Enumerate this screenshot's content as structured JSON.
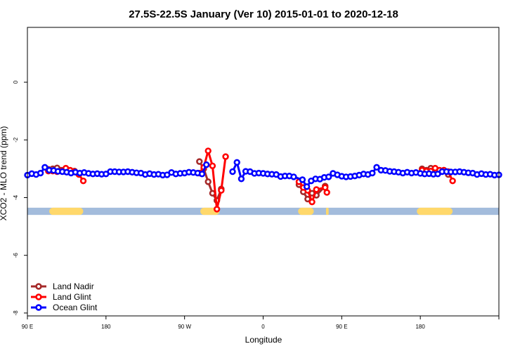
{
  "chart_data": {
    "type": "line",
    "title": "27.5S-22.5S January (Ver 10)   2015-01-01 to 2020-12-18",
    "xlabel": "Longitude",
    "ylabel": "XCO2 - MLO trend (ppm)",
    "xlim": [
      -90,
      180
    ],
    "ylim": [
      -8.1,
      1.9
    ],
    "x_axis": "Longitude in degrees east, plotted on a wrapped axis from 90 E eastward through 180 and 90 W to 0, then 90 E again, ending at 180",
    "x_ticks": [
      {
        "pos": -90,
        "label": "90 E"
      },
      {
        "pos": -45,
        "label": "180"
      },
      {
        "pos": 0,
        "label": "90 W"
      },
      {
        "pos": 45,
        "label": "0"
      },
      {
        "pos": 90,
        "label": "90 E"
      },
      {
        "pos": 135,
        "label": "180"
      }
    ],
    "y_ticks": [
      {
        "pos": 0,
        "label": "0"
      },
      {
        "pos": -2,
        "label": "-2"
      },
      {
        "pos": -4,
        "label": "-4"
      },
      {
        "pos": -6,
        "label": "-6"
      },
      {
        "pos": -8,
        "label": "-8"
      }
    ],
    "land_mask": {
      "y_range": [
        -4.6,
        -4.35
      ],
      "ocean_color": "#a3bcdc",
      "land_color": "#ffd86b",
      "land_segments": [
        [
          -77.5,
          -58
        ],
        [
          9,
          20
        ],
        [
          65,
          74
        ],
        [
          81,
          82.5
        ],
        [
          133,
          153.5
        ]
      ]
    },
    "legend": {
      "position": "bottom-left",
      "entries": [
        {
          "label": "Land Nadir",
          "color": "#a52a2a"
        },
        {
          "label": "Land Glint",
          "color": "#ff0000"
        },
        {
          "label": "Ocean Glint",
          "color": "#0000ff"
        }
      ]
    },
    "series": [
      {
        "name": "Land Nadir",
        "color": "#a52a2a",
        "points": [
          [
            -78,
            -3.02
          ],
          [
            -75.5,
            -3.0
          ],
          [
            -73,
            -2.97
          ],
          [
            -70.5,
            -3.05
          ],
          [
            -68,
            -3.1
          ],
          [
            -65.5,
            -3.1
          ],
          [
            -63,
            -3.08
          ],
          [
            8.5,
            -2.75
          ],
          [
            11,
            -3.0
          ],
          [
            13.5,
            -3.45
          ],
          [
            16,
            -3.85
          ],
          [
            18.5,
            -4.1
          ],
          [
            21,
            -3.7
          ],
          [
            65.5,
            -3.55
          ],
          [
            68,
            -3.8
          ],
          [
            70.5,
            -4.05
          ],
          [
            73,
            -3.85
          ],
          [
            75.5,
            -3.92
          ],
          [
            80.5,
            -3.6
          ],
          [
            136,
            -3.0
          ],
          [
            138.5,
            -3.05
          ],
          [
            141,
            -2.98
          ],
          [
            143.5,
            -3.1
          ],
          [
            146,
            -3.1
          ],
          [
            148.5,
            -3.05
          ],
          [
            151,
            -3.2
          ]
        ]
      },
      {
        "name": "Land Glint",
        "color": "#ff0000",
        "points": [
          [
            -78,
            -3.08
          ],
          [
            -75.5,
            -3.08
          ],
          [
            -73,
            -3.1
          ],
          [
            -70.5,
            -3.08
          ],
          [
            -68,
            -2.98
          ],
          [
            -65.5,
            -3.05
          ],
          [
            -63,
            -3.1
          ],
          [
            -60.5,
            -3.2
          ],
          [
            -58,
            -3.42
          ],
          [
            8.5,
            -3.15
          ],
          [
            11,
            -2.95
          ],
          [
            13.5,
            -2.38
          ],
          [
            16,
            -2.9
          ],
          [
            18.5,
            -4.4
          ],
          [
            21,
            -3.75
          ],
          [
            23.5,
            -2.58
          ],
          [
            65.5,
            -3.45
          ],
          [
            68,
            -3.65
          ],
          [
            70.5,
            -3.75
          ],
          [
            73,
            -4.15
          ],
          [
            75.5,
            -3.72
          ],
          [
            80.5,
            -3.65
          ],
          [
            81.5,
            -3.82
          ],
          [
            136,
            -3.05
          ],
          [
            138.5,
            -3.08
          ],
          [
            141,
            -3.08
          ],
          [
            143.5,
            -2.98
          ],
          [
            146,
            -3.05
          ],
          [
            148.5,
            -3.05
          ],
          [
            151,
            -3.1
          ],
          [
            153.5,
            -3.42
          ]
        ]
      },
      {
        "name": "Ocean Glint",
        "color": "#0000ff",
        "points": [
          [
            -90,
            -3.22
          ],
          [
            -87.5,
            -3.17
          ],
          [
            -85,
            -3.2
          ],
          [
            -82.5,
            -3.15
          ],
          [
            -80,
            -2.95
          ],
          [
            -77.5,
            -3.05
          ],
          [
            -75,
            -3.06
          ],
          [
            -72.5,
            -3.09
          ],
          [
            -70,
            -3.1
          ],
          [
            -67.5,
            -3.12
          ],
          [
            -65,
            -3.15
          ],
          [
            -62.5,
            -3.12
          ],
          [
            -60,
            -3.15
          ],
          [
            -57.5,
            -3.13
          ],
          [
            -55,
            -3.16
          ],
          [
            -52.5,
            -3.18
          ],
          [
            -50,
            -3.17
          ],
          [
            -47.5,
            -3.19
          ],
          [
            -45,
            -3.18
          ],
          [
            -42.5,
            -3.1
          ],
          [
            -40,
            -3.1
          ],
          [
            -37.5,
            -3.11
          ],
          [
            -35,
            -3.11
          ],
          [
            -32.5,
            -3.1
          ],
          [
            -30,
            -3.12
          ],
          [
            -27.5,
            -3.14
          ],
          [
            -25,
            -3.15
          ],
          [
            -22.5,
            -3.2
          ],
          [
            -20,
            -3.17
          ],
          [
            -17.5,
            -3.2
          ],
          [
            -15,
            -3.19
          ],
          [
            -12.5,
            -3.22
          ],
          [
            -10,
            -3.21
          ],
          [
            -7.5,
            -3.13
          ],
          [
            -5,
            -3.18
          ],
          [
            -2.5,
            -3.16
          ],
          [
            0,
            -3.15
          ],
          [
            2.5,
            -3.12
          ],
          [
            5,
            -3.13
          ],
          [
            7.5,
            -3.15
          ],
          [
            10,
            -3.18
          ],
          [
            12.5,
            -2.86
          ],
          [
            27.5,
            -3.1
          ],
          [
            30,
            -2.78
          ],
          [
            32.5,
            -3.35
          ],
          [
            35,
            -3.09
          ],
          [
            37.5,
            -3.1
          ],
          [
            40,
            -3.16
          ],
          [
            42.5,
            -3.15
          ],
          [
            45,
            -3.16
          ],
          [
            47.5,
            -3.18
          ],
          [
            50,
            -3.19
          ],
          [
            52.5,
            -3.2
          ],
          [
            55,
            -3.27
          ],
          [
            57.5,
            -3.25
          ],
          [
            60,
            -3.25
          ],
          [
            62.5,
            -3.28
          ],
          [
            67.5,
            -3.38
          ],
          [
            70,
            -3.62
          ],
          [
            72.5,
            -3.42
          ],
          [
            75,
            -3.35
          ],
          [
            77.5,
            -3.36
          ],
          [
            80,
            -3.3
          ],
          [
            82.5,
            -3.28
          ],
          [
            85,
            -3.16
          ],
          [
            87.5,
            -3.21
          ],
          [
            90,
            -3.26
          ],
          [
            92.5,
            -3.28
          ],
          [
            95,
            -3.27
          ],
          [
            97.5,
            -3.25
          ],
          [
            100,
            -3.22
          ],
          [
            102.5,
            -3.18
          ],
          [
            105,
            -3.2
          ],
          [
            107.5,
            -3.15
          ],
          [
            110,
            -2.95
          ],
          [
            112.5,
            -3.05
          ],
          [
            115,
            -3.06
          ],
          [
            117.5,
            -3.09
          ],
          [
            120,
            -3.1
          ],
          [
            122.5,
            -3.12
          ],
          [
            125,
            -3.15
          ],
          [
            127.5,
            -3.12
          ],
          [
            130,
            -3.15
          ],
          [
            132.5,
            -3.13
          ],
          [
            135,
            -3.16
          ],
          [
            137.5,
            -3.18
          ],
          [
            140,
            -3.17
          ],
          [
            142.5,
            -3.19
          ],
          [
            145,
            -3.18
          ],
          [
            147.5,
            -3.1
          ],
          [
            150,
            -3.1
          ],
          [
            152.5,
            -3.11
          ],
          [
            155,
            -3.11
          ],
          [
            157.5,
            -3.1
          ],
          [
            160,
            -3.12
          ],
          [
            162.5,
            -3.14
          ],
          [
            165,
            -3.15
          ],
          [
            167.5,
            -3.2
          ],
          [
            170,
            -3.17
          ],
          [
            172.5,
            -3.2
          ],
          [
            175,
            -3.19
          ],
          [
            177.5,
            -3.22
          ],
          [
            180,
            -3.21
          ]
        ]
      }
    ]
  }
}
